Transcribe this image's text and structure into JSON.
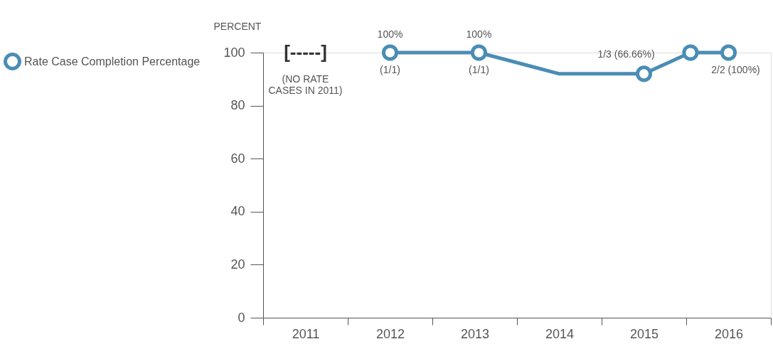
{
  "chart_data": {
    "type": "line",
    "ylabel": "PERCENT",
    "xlim": [
      2010.5,
      2016.5
    ],
    "xticks": [
      {
        "value": 2010.5,
        "label": null
      },
      2011,
      {
        "value": 2011.5,
        "label": null
      },
      2012,
      {
        "value": 2012.5,
        "label": null
      },
      2013,
      {
        "value": 2013.5,
        "label": null
      },
      2014,
      {
        "value": 2014.5,
        "label": null
      },
      2015,
      {
        "value": 2015.5,
        "label": null
      },
      2016,
      {
        "value": 2016.5,
        "label": null
      }
    ],
    "ylim": [
      0,
      100
    ],
    "yticks": [
      0,
      20,
      40,
      60,
      80,
      100
    ],
    "grid": false,
    "legend": "left",
    "series": [
      {
        "name": "Rate Case Completion Percentage",
        "marker": "none",
        "color": "#4a8db5",
        "x": [
          2012,
          2013.05,
          2014,
          2015,
          2015.55,
          2016
        ],
        "values": [
          100,
          100,
          92,
          92,
          100,
          100
        ]
      },
      {
        "type": "scatter",
        "marker": "circle",
        "color": "#4a8db5",
        "x": [
          2012,
          2013.05,
          2015,
          2015.55,
          2016
        ],
        "values": [
          100,
          100,
          92,
          100,
          100
        ]
      }
    ],
    "annotations": [
      "[-----]",
      "(NO RATE\nCASES IN 2011)",
      {
        "text": "100%",
        "x": 2012,
        "y": 100
      },
      {
        "text": "(1/1)",
        "x": 2012,
        "y": 100
      },
      {
        "text": "100%",
        "x": 2013.05,
        "y": 100
      },
      {
        "text": "(1/1)",
        "x": 2013.05,
        "y": 100
      },
      {
        "text": "1/3 (66.66%)",
        "x": 2015,
        "y": 92
      },
      {
        "text": "2/2 (100%)",
        "x": 2016,
        "y": 100
      }
    ]
  }
}
